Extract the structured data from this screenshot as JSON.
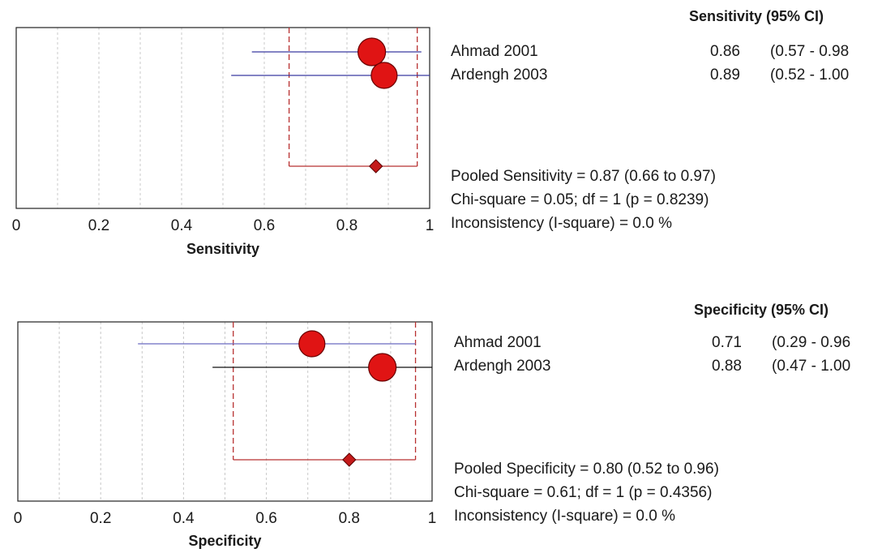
{
  "chart_data": [
    {
      "type": "forest",
      "metric_header": "Sensitivity (95% CI)",
      "xlabel": "Sensitivity",
      "xlim": [
        0,
        1
      ],
      "ticks": [
        "0",
        "0.2",
        "0.4",
        "0.6",
        "0.8",
        "1"
      ],
      "studies": [
        {
          "name": "Ahmad 2001",
          "estimate": 0.86,
          "ci_low": 0.57,
          "ci_high": 0.98,
          "value_text": "0.86",
          "ci_text": "(0.57 - 0.98",
          "weight": 1.0,
          "line_color": "#3a3aa0"
        },
        {
          "name": "Ardengh 2003",
          "estimate": 0.89,
          "ci_low": 0.52,
          "ci_high": 1.0,
          "value_text": "0.89",
          "ci_text": "(0.52 - 1.00",
          "weight": 0.8,
          "line_color": "#3a3aa0"
        }
      ],
      "pooled": {
        "estimate": 0.87,
        "ci_low": 0.66,
        "ci_high": 0.97
      },
      "stats": [
        "Pooled Sensitivity = 0.87 (0.66 to 0.97)",
        "Chi-square = 0.05; df =  1 (p = 0.8239)",
        "Inconsistency (I-square) = 0.0 %"
      ]
    },
    {
      "type": "forest",
      "metric_header": "Specificity (95% CI)",
      "xlabel": "Specificity",
      "xlim": [
        0,
        1
      ],
      "ticks": [
        "0",
        "0.2",
        "0.4",
        "0.6",
        "0.8",
        "1"
      ],
      "studies": [
        {
          "name": "Ahmad 2001",
          "estimate": 0.71,
          "ci_low": 0.29,
          "ci_high": 0.96,
          "value_text": "0.71",
          "ci_text": "(0.29 - 0.96",
          "weight": 0.8,
          "line_color": "#6a6ac0"
        },
        {
          "name": "Ardengh 2003",
          "estimate": 0.88,
          "ci_low": 0.47,
          "ci_high": 1.0,
          "value_text": "0.88",
          "ci_text": "(0.47 - 1.00",
          "weight": 1.0,
          "line_color": "#111111"
        }
      ],
      "pooled": {
        "estimate": 0.8,
        "ci_low": 0.52,
        "ci_high": 0.96
      },
      "stats": [
        "Pooled Specificity = 0.80 (0.52 to 0.96)",
        "Chi-square = 0.61; df =  1 (p = 0.4356)",
        "Inconsistency (I-square) = 0.0 %"
      ]
    }
  ],
  "colors": {
    "marker": "#e01414",
    "marker_stroke": "#6a0000",
    "pooled_line": "#b83030",
    "grid": "#c8c8c8"
  }
}
